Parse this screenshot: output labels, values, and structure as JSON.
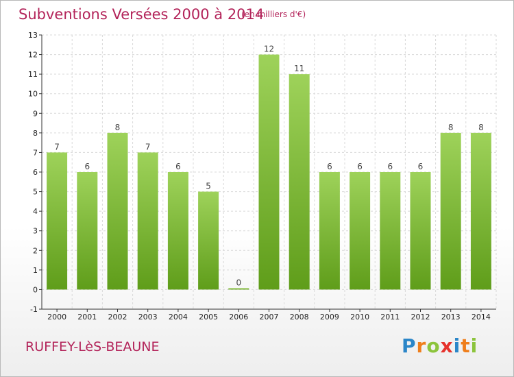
{
  "header": {
    "title": "Subventions Versées 2000 à 2014",
    "unit": "(en milliers d'€)"
  },
  "footer": {
    "commune": "RUFFEY-LèS-BEAUNE",
    "logo_letters": [
      "P",
      "r",
      "o",
      "x",
      "i",
      "t",
      "i"
    ]
  },
  "colors": {
    "title": "#b3245a",
    "bar_light": "#9ed25a",
    "bar_dark": "#5f9d1a",
    "grid": "#d9d9d9"
  },
  "chart_data": {
    "type": "bar",
    "title": "Subventions Versées 2000 à 2014",
    "subtitle": "(en milliers d'€)",
    "xlabel": "",
    "ylabel": "",
    "categories": [
      "2000",
      "2001",
      "2002",
      "2003",
      "2004",
      "2005",
      "2006",
      "2007",
      "2008",
      "2009",
      "2010",
      "2011",
      "2012",
      "2013",
      "2014"
    ],
    "values": [
      7,
      6,
      8,
      7,
      6,
      5,
      0,
      12,
      11,
      6,
      6,
      6,
      6,
      8,
      8
    ],
    "ylim": [
      -1,
      13
    ],
    "yticks": [
      -1,
      0,
      1,
      2,
      3,
      4,
      5,
      6,
      7,
      8,
      9,
      10,
      11,
      12,
      13
    ],
    "grid": true
  }
}
